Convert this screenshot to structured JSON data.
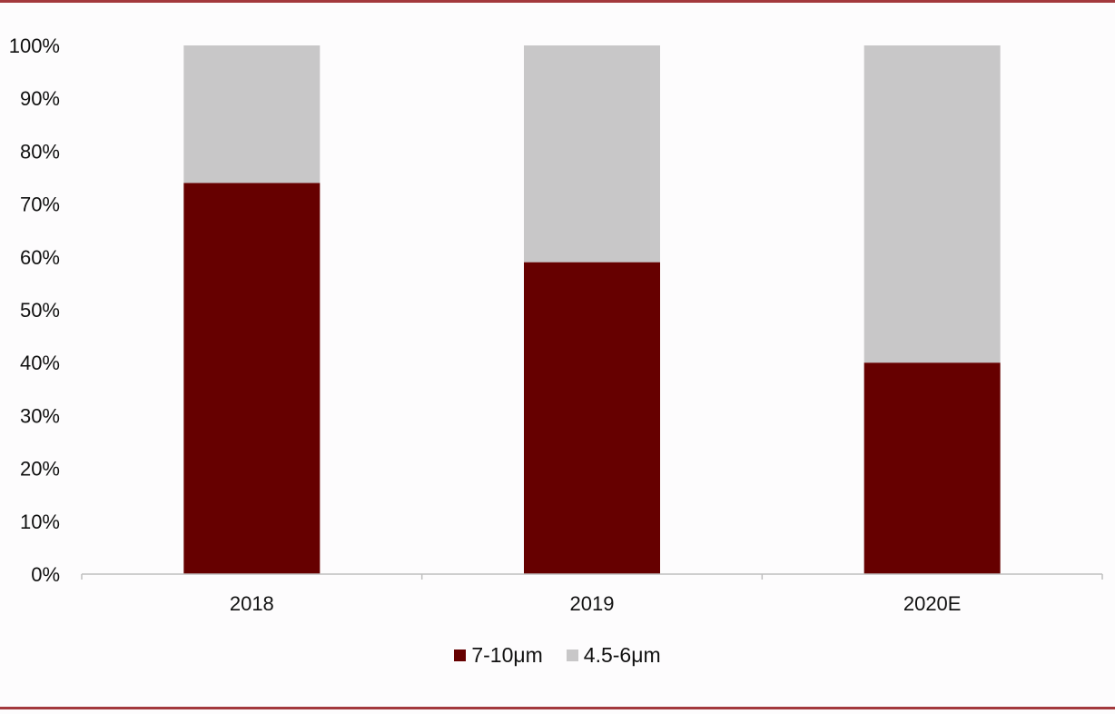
{
  "chart_data": {
    "type": "bar",
    "stacked": true,
    "categories": [
      "2018",
      "2019",
      "2020E"
    ],
    "series": [
      {
        "name": "7-10μm",
        "values": [
          74,
          59,
          40
        ],
        "color": "#660000"
      },
      {
        "name": "4.5-6μm",
        "values": [
          26,
          41,
          60
        ],
        "color": "#c8c7c8"
      }
    ],
    "ylim": [
      0,
      100
    ],
    "yticks": [
      "0%",
      "10%",
      "20%",
      "30%",
      "40%",
      "50%",
      "60%",
      "70%",
      "80%",
      "90%",
      "100%"
    ],
    "grid": false,
    "legend_position": "bottom"
  },
  "colors": {
    "frame": "#a3393d",
    "axis": "#bfbfbf"
  }
}
